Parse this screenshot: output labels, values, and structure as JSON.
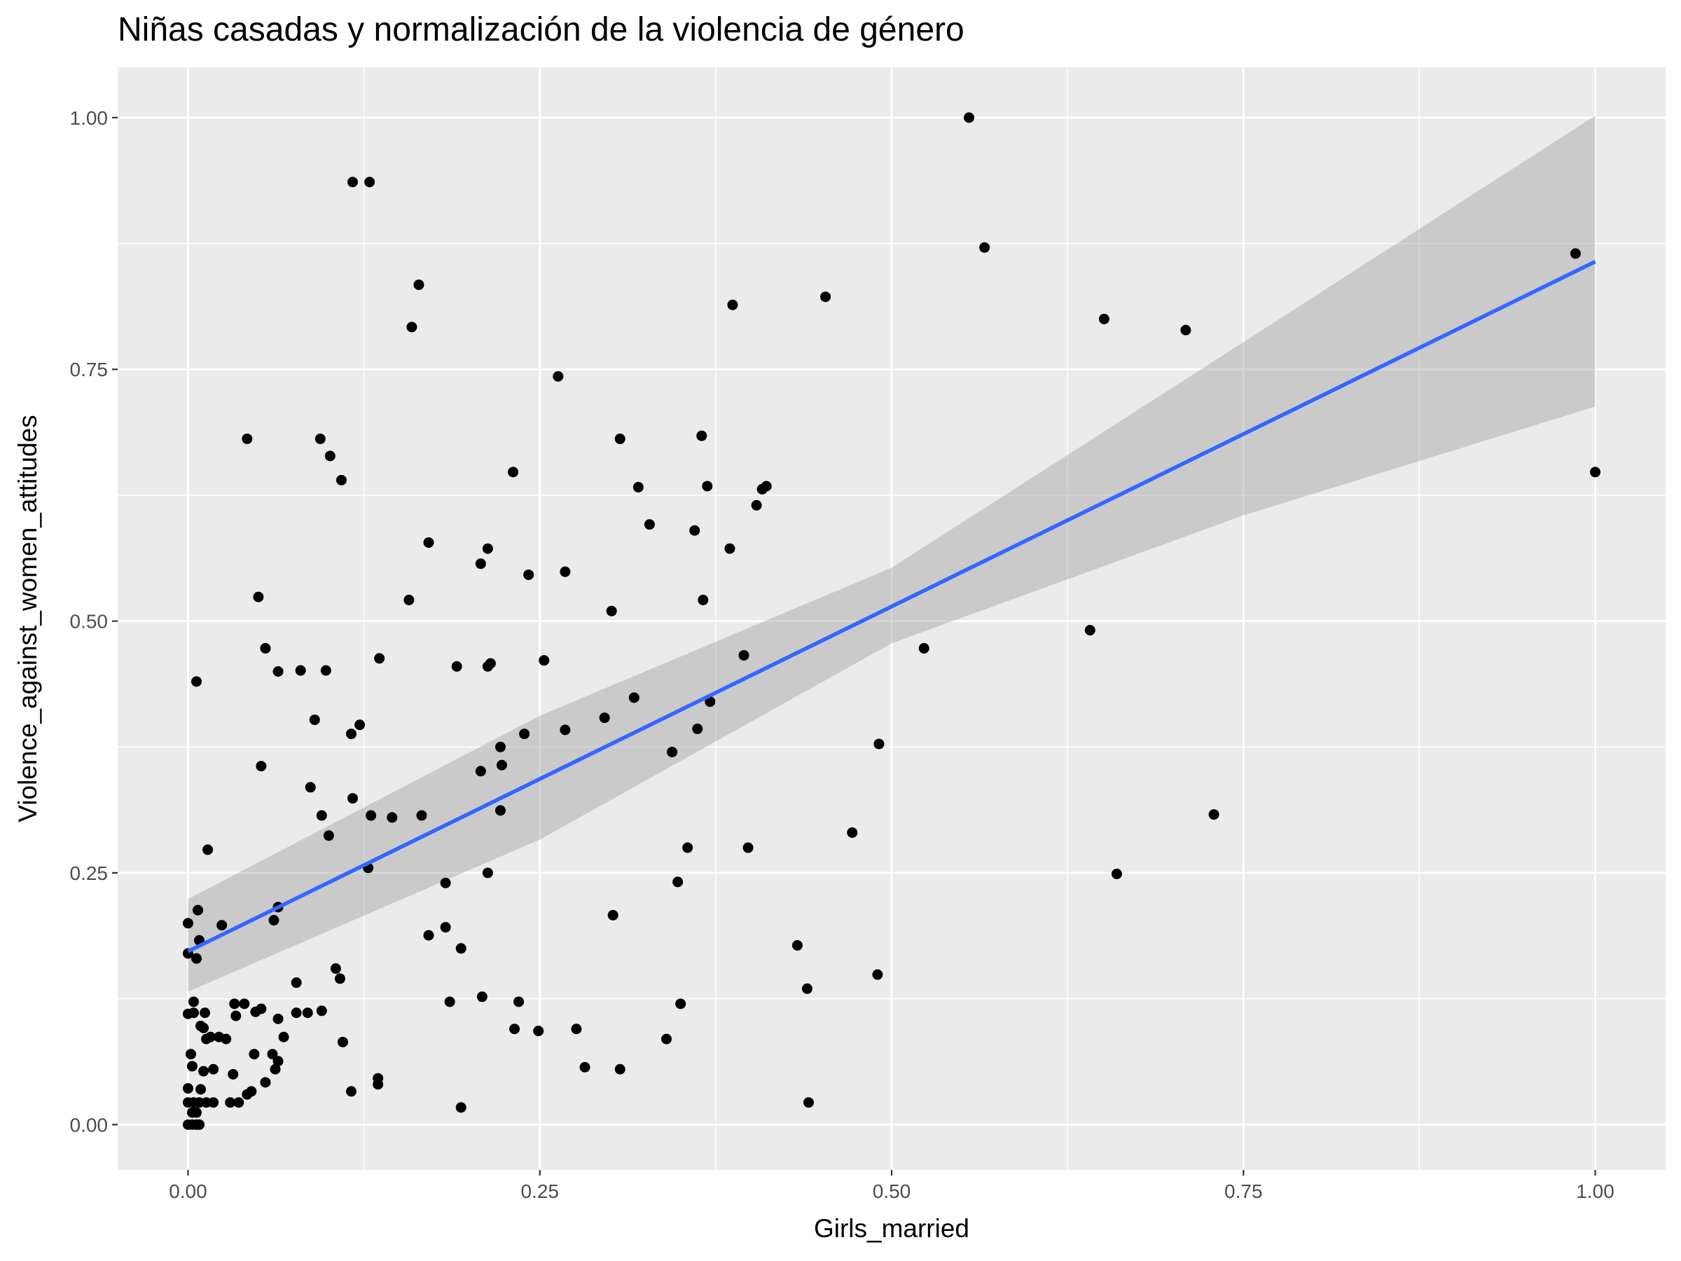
{
  "chart_data": {
    "type": "scatter",
    "title": "Niñas casadas y normalización de la violencia de género",
    "xlabel": "Girls_married",
    "ylabel": "Violence_against_women_attitudes",
    "xlim": [
      -0.05,
      1.05
    ],
    "ylim": [
      -0.045,
      1.05
    ],
    "x_ticks": [
      0.0,
      0.25,
      0.5,
      0.75,
      1.0
    ],
    "x_tick_labels": [
      "0.00",
      "0.25",
      "0.50",
      "0.75",
      "1.00"
    ],
    "y_ticks": [
      0.0,
      0.25,
      0.5,
      0.75,
      1.0
    ],
    "y_tick_labels": [
      "0.00",
      "0.25",
      "0.50",
      "0.75",
      "1.00"
    ],
    "grid": true,
    "colors": {
      "panel": "#EBEBEB",
      "grid": "#FFFFFF",
      "points": "#000000",
      "fit_line": "#3366FF",
      "ribbon": "#999999"
    },
    "regression": {
      "x": [
        0.0,
        1.0
      ],
      "y": [
        0.172,
        0.857
      ],
      "ci_x": [
        0.0,
        0.25,
        0.5,
        0.75,
        1.0
      ],
      "ci_lower": [
        0.132,
        0.283,
        0.478,
        0.605,
        0.713
      ],
      "ci_upper": [
        0.224,
        0.406,
        0.553,
        0.777,
        1.002
      ]
    },
    "series": [
      {
        "points": [
          [
            0.0,
            0.0
          ],
          [
            0.003,
            0.0
          ],
          [
            0.006,
            0.0
          ],
          [
            0.008,
            0.0
          ],
          [
            0.0,
            0.022
          ],
          [
            0.004,
            0.022
          ],
          [
            0.008,
            0.022
          ],
          [
            0.013,
            0.022
          ],
          [
            0.018,
            0.022
          ],
          [
            0.03,
            0.022
          ],
          [
            0.036,
            0.022
          ],
          [
            0.003,
            0.012
          ],
          [
            0.006,
            0.012
          ],
          [
            0.0,
            0.036
          ],
          [
            0.009,
            0.035
          ],
          [
            0.042,
            0.03
          ],
          [
            0.045,
            0.033
          ],
          [
            0.055,
            0.042
          ],
          [
            0.06,
            0.07
          ],
          [
            0.047,
            0.07
          ],
          [
            0.002,
            0.07
          ],
          [
            0.003,
            0.058
          ],
          [
            0.011,
            0.053
          ],
          [
            0.018,
            0.055
          ],
          [
            0.032,
            0.05
          ],
          [
            0.062,
            0.055
          ],
          [
            0.064,
            0.063
          ],
          [
            0.068,
            0.087
          ],
          [
            0.022,
            0.087
          ],
          [
            0.016,
            0.087
          ],
          [
            0.013,
            0.085
          ],
          [
            0.027,
            0.085
          ],
          [
            0.0,
            0.11
          ],
          [
            0.004,
            0.111
          ],
          [
            0.012,
            0.111
          ],
          [
            0.009,
            0.098
          ],
          [
            0.011,
            0.096
          ],
          [
            0.034,
            0.108
          ],
          [
            0.033,
            0.12
          ],
          [
            0.04,
            0.12
          ],
          [
            0.048,
            0.112
          ],
          [
            0.052,
            0.115
          ],
          [
            0.064,
            0.105
          ],
          [
            0.077,
            0.111
          ],
          [
            0.085,
            0.111
          ],
          [
            0.095,
            0.113
          ],
          [
            0.077,
            0.141
          ],
          [
            0.105,
            0.155
          ],
          [
            0.108,
            0.145
          ],
          [
            0.11,
            0.082
          ],
          [
            0.116,
            0.033
          ],
          [
            0.135,
            0.04
          ],
          [
            0.135,
            0.046
          ],
          [
            0.004,
            0.122
          ],
          [
            0.0,
            0.2
          ],
          [
            0.0,
            0.17
          ],
          [
            0.006,
            0.165
          ],
          [
            0.007,
            0.213
          ],
          [
            0.008,
            0.183
          ],
          [
            0.024,
            0.198
          ],
          [
            0.014,
            0.273
          ],
          [
            0.061,
            0.203
          ],
          [
            0.064,
            0.216
          ],
          [
            0.087,
            0.335
          ],
          [
            0.095,
            0.307
          ],
          [
            0.1,
            0.287
          ],
          [
            0.117,
            0.324
          ],
          [
            0.122,
            0.397
          ],
          [
            0.116,
            0.388
          ],
          [
            0.09,
            0.402
          ],
          [
            0.052,
            0.356
          ],
          [
            0.055,
            0.473
          ],
          [
            0.064,
            0.45
          ],
          [
            0.08,
            0.451
          ],
          [
            0.098,
            0.451
          ],
          [
            0.05,
            0.524
          ],
          [
            0.006,
            0.44
          ],
          [
            0.042,
            0.681
          ],
          [
            0.094,
            0.681
          ],
          [
            0.101,
            0.664
          ],
          [
            0.109,
            0.64
          ],
          [
            0.117,
            0.936
          ],
          [
            0.129,
            0.936
          ],
          [
            0.159,
            0.792
          ],
          [
            0.164,
            0.834
          ],
          [
            0.171,
            0.578
          ],
          [
            0.157,
            0.521
          ],
          [
            0.136,
            0.463
          ],
          [
            0.128,
            0.255
          ],
          [
            0.13,
            0.307
          ],
          [
            0.145,
            0.305
          ],
          [
            0.166,
            0.307
          ],
          [
            0.171,
            0.188
          ],
          [
            0.183,
            0.24
          ],
          [
            0.183,
            0.196
          ],
          [
            0.186,
            0.122
          ],
          [
            0.194,
            0.175
          ],
          [
            0.194,
            0.017
          ],
          [
            0.191,
            0.455
          ],
          [
            0.208,
            0.351
          ],
          [
            0.208,
            0.557
          ],
          [
            0.209,
            0.127
          ],
          [
            0.213,
            0.572
          ],
          [
            0.213,
            0.455
          ],
          [
            0.215,
            0.458
          ],
          [
            0.213,
            0.25
          ],
          [
            0.222,
            0.375
          ],
          [
            0.223,
            0.357
          ],
          [
            0.222,
            0.312
          ],
          [
            0.231,
            0.648
          ],
          [
            0.232,
            0.095
          ],
          [
            0.235,
            0.122
          ],
          [
            0.239,
            0.388
          ],
          [
            0.242,
            0.546
          ],
          [
            0.249,
            0.093
          ],
          [
            0.253,
            0.461
          ],
          [
            0.263,
            0.743
          ],
          [
            0.268,
            0.549
          ],
          [
            0.268,
            0.392
          ],
          [
            0.276,
            0.095
          ],
          [
            0.282,
            0.057
          ],
          [
            0.296,
            0.404
          ],
          [
            0.301,
            0.51
          ],
          [
            0.302,
            0.208
          ],
          [
            0.307,
            0.681
          ],
          [
            0.307,
            0.055
          ],
          [
            0.317,
            0.424
          ],
          [
            0.32,
            0.633
          ],
          [
            0.328,
            0.596
          ],
          [
            0.34,
            0.085
          ],
          [
            0.344,
            0.37
          ],
          [
            0.348,
            0.241
          ],
          [
            0.35,
            0.12
          ],
          [
            0.355,
            0.275
          ],
          [
            0.36,
            0.59
          ],
          [
            0.362,
            0.393
          ],
          [
            0.365,
            0.684
          ],
          [
            0.366,
            0.521
          ],
          [
            0.369,
            0.634
          ],
          [
            0.371,
            0.42
          ],
          [
            0.385,
            0.572
          ],
          [
            0.387,
            0.814
          ],
          [
            0.395,
            0.466
          ],
          [
            0.398,
            0.275
          ],
          [
            0.404,
            0.615
          ],
          [
            0.408,
            0.631
          ],
          [
            0.411,
            0.634
          ],
          [
            0.433,
            0.178
          ],
          [
            0.44,
            0.135
          ],
          [
            0.441,
            0.022
          ],
          [
            0.453,
            0.822
          ],
          [
            0.472,
            0.29
          ],
          [
            0.491,
            0.378
          ],
          [
            0.49,
            0.149
          ],
          [
            0.523,
            0.473
          ],
          [
            0.555,
            1.0
          ],
          [
            0.566,
            0.871
          ],
          [
            0.641,
            0.491
          ],
          [
            0.651,
            0.8
          ],
          [
            0.66,
            0.249
          ],
          [
            0.709,
            0.789
          ],
          [
            0.729,
            0.308
          ],
          [
            0.986,
            0.865
          ],
          [
            1.0,
            0.648
          ]
        ]
      }
    ]
  }
}
